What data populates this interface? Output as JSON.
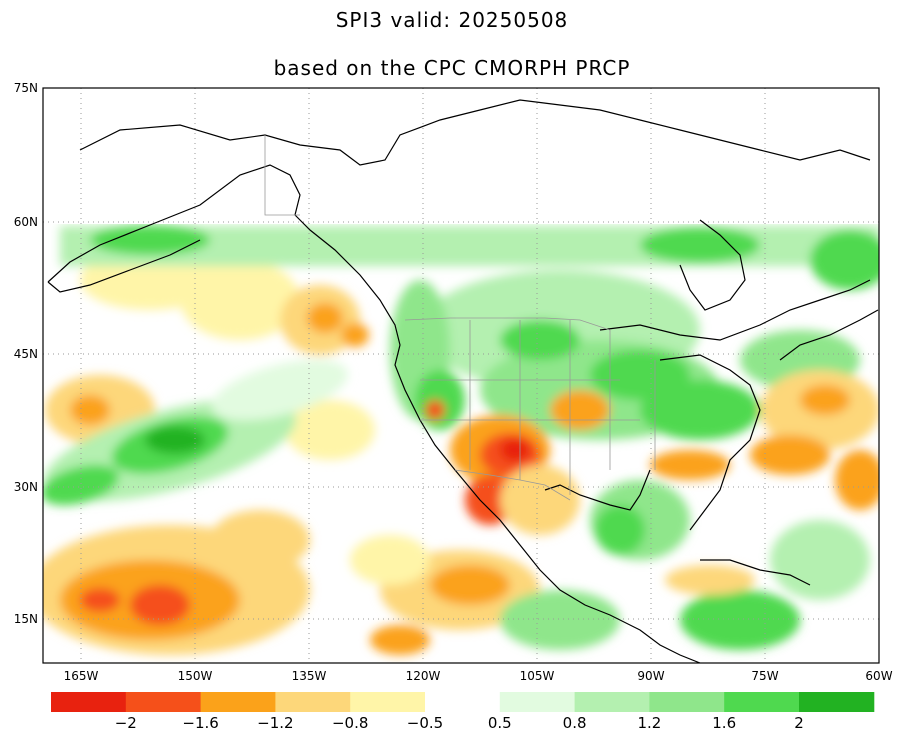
{
  "title_line1": "SPI3   valid: 20250508",
  "title_line2": "based on the CPC CMORPH PRCP",
  "map": {
    "lon_range": [
      -170,
      -60
    ],
    "lat_range": [
      10,
      75
    ],
    "lat_labels": [
      "75N",
      "60N",
      "45N",
      "30N",
      "15N"
    ],
    "lat_values": [
      75,
      60,
      45,
      30,
      15
    ],
    "lon_labels": [
      "165W",
      "150W",
      "135W",
      "120W",
      "105W",
      "90W",
      "75W",
      "60W"
    ],
    "lon_values": [
      -165,
      -150,
      -135,
      -120,
      -105,
      -90,
      -75,
      -60
    ],
    "grid": "dotted"
  },
  "colorbar": {
    "colors": [
      "#e8220f",
      "#f5501a",
      "#fba21a",
      "#fdd77a",
      "#fff5a8",
      "#ffffff",
      "#e2fbe0",
      "#b4f0b0",
      "#8fe68b",
      "#4fd94f",
      "#22b222"
    ],
    "labels": [
      "−2",
      "−1.6",
      "−1.2",
      "−0.8",
      "−0.5",
      "0.5",
      "0.8",
      "1.2",
      "1.6",
      "2"
    ]
  }
}
